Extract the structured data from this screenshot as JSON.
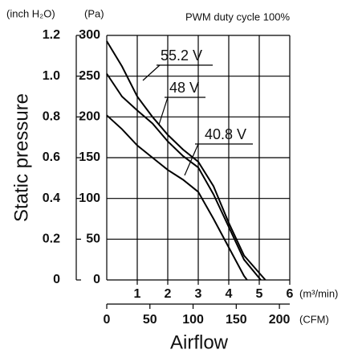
{
  "chart_data": {
    "type": "line",
    "title": "PWM duty cycle 100%",
    "y_label": "Static pressure",
    "x_label": "Airflow",
    "y_unit": "(Pa)",
    "y2_unit": "(inch H₂O)",
    "x_unit": "(m³/min)",
    "x2_unit": "(CFM)",
    "xlim": [
      0,
      6
    ],
    "xticks": [
      1,
      2,
      3,
      4,
      5,
      6
    ],
    "x2lim": [
      0,
      212
    ],
    "x2ticks": [
      0,
      50,
      100,
      150,
      200
    ],
    "ylim": [
      0,
      300
    ],
    "yticks": [
      0,
      50,
      100,
      150,
      200,
      250,
      300
    ],
    "y2lim": [
      0,
      1.2
    ],
    "y2ticks": [
      0,
      0.2,
      0.4,
      0.6,
      0.8,
      {
        "value": 1,
        "label": "1.0"
      },
      1.2
    ],
    "grid": true,
    "series": [
      {
        "name": "55.2 V",
        "color": "#000000",
        "x": [
          0,
          0.5,
          1,
          1.5,
          2,
          2.5,
          3,
          3.5,
          4,
          4.5,
          5.2
        ],
        "values": [
          293,
          262,
          225,
          200,
          178,
          160,
          145,
          115,
          70,
          30,
          0
        ]
      },
      {
        "name": "48 V",
        "color": "#000000",
        "x": [
          0,
          0.5,
          1,
          1.5,
          2,
          2.5,
          3,
          3.5,
          4,
          4.5,
          5.05
        ],
        "values": [
          253,
          225,
          208,
          192,
          170,
          152,
          138,
          105,
          65,
          25,
          0
        ]
      },
      {
        "name": "40.8 V",
        "color": "#000000",
        "x": [
          0,
          0.5,
          1,
          1.5,
          2,
          2.5,
          3,
          3.5,
          4,
          4.5,
          4.6
        ],
        "values": [
          202,
          185,
          165,
          150,
          135,
          123,
          108,
          75,
          40,
          5,
          0
        ]
      }
    ]
  }
}
